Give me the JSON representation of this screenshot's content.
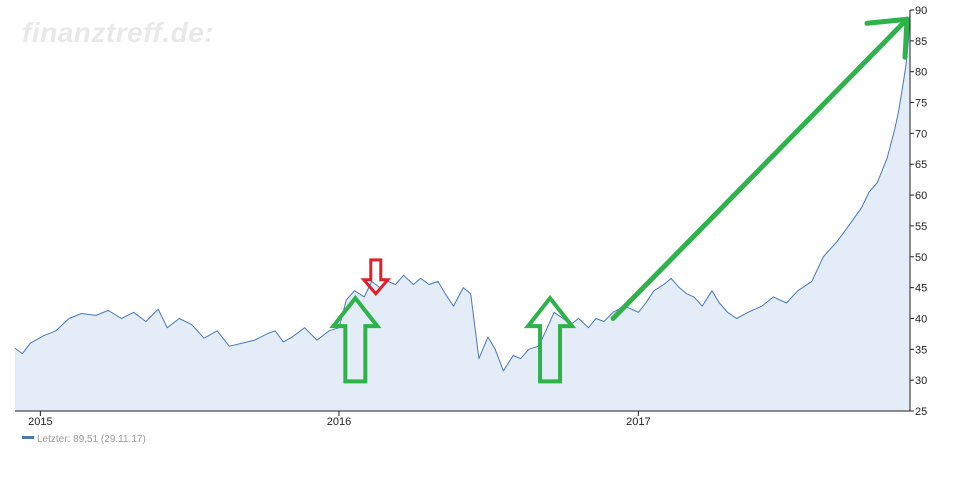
{
  "watermark": "finanztreff.de:",
  "chart_data": {
    "type": "area",
    "title": "",
    "xlabel": "",
    "ylabel": "",
    "x_range": [
      "2014-12-01",
      "2017-11-29"
    ],
    "ylim": [
      25,
      90
    ],
    "y_ticks": [
      25,
      30,
      35,
      40,
      45,
      50,
      55,
      60,
      65,
      70,
      75,
      80,
      85,
      90
    ],
    "x_ticks": [
      {
        "date": "2015-01-01",
        "label": "2015"
      },
      {
        "date": "2016-01-01",
        "label": "2016"
      },
      {
        "date": "2017-01-01",
        "label": "2017"
      }
    ],
    "y_axis_position": "right",
    "grid": false,
    "series": [
      {
        "name": "Letzter",
        "color": "#4a79b5",
        "fill_color": "#e3ecf7",
        "points": [
          [
            "2014-12-01",
            35.2
          ],
          [
            "2014-12-10",
            34.3
          ],
          [
            "2014-12-20",
            36.0
          ],
          [
            "2015-01-05",
            37.2
          ],
          [
            "2015-01-20",
            38.0
          ],
          [
            "2015-02-05",
            40.0
          ],
          [
            "2015-02-20",
            40.8
          ],
          [
            "2015-03-10",
            40.5
          ],
          [
            "2015-03-25",
            41.3
          ],
          [
            "2015-04-10",
            40.0
          ],
          [
            "2015-04-25",
            41.0
          ],
          [
            "2015-05-10",
            39.5
          ],
          [
            "2015-05-25",
            41.5
          ],
          [
            "2015-06-05",
            38.5
          ],
          [
            "2015-06-20",
            40.0
          ],
          [
            "2015-07-05",
            39.0
          ],
          [
            "2015-07-20",
            36.8
          ],
          [
            "2015-08-05",
            38.0
          ],
          [
            "2015-08-20",
            35.5
          ],
          [
            "2015-09-05",
            36.0
          ],
          [
            "2015-09-20",
            36.5
          ],
          [
            "2015-10-05",
            37.5
          ],
          [
            "2015-10-15",
            38.0
          ],
          [
            "2015-10-25",
            36.2
          ],
          [
            "2015-11-05",
            37.0
          ],
          [
            "2015-11-20",
            38.5
          ],
          [
            "2015-12-05",
            36.5
          ],
          [
            "2015-12-20",
            38.0
          ],
          [
            "2016-01-01",
            38.5
          ],
          [
            "2016-01-10",
            43.0
          ],
          [
            "2016-01-20",
            44.5
          ],
          [
            "2016-02-01",
            43.5
          ],
          [
            "2016-02-10",
            46.0
          ],
          [
            "2016-02-20",
            45.0
          ],
          [
            "2016-03-01",
            46.0
          ],
          [
            "2016-03-10",
            45.5
          ],
          [
            "2016-03-20",
            47.0
          ],
          [
            "2016-04-01",
            45.5
          ],
          [
            "2016-04-10",
            46.5
          ],
          [
            "2016-04-20",
            45.5
          ],
          [
            "2016-05-01",
            46.0
          ],
          [
            "2016-05-10",
            44.0
          ],
          [
            "2016-05-20",
            42.0
          ],
          [
            "2016-06-01",
            45.0
          ],
          [
            "2016-06-10",
            44.0
          ],
          [
            "2016-06-20",
            33.5
          ],
          [
            "2016-07-01",
            37.0
          ],
          [
            "2016-07-10",
            35.0
          ],
          [
            "2016-07-20",
            31.5
          ],
          [
            "2016-08-01",
            34.0
          ],
          [
            "2016-08-10",
            33.5
          ],
          [
            "2016-08-20",
            35.0
          ],
          [
            "2016-09-01",
            35.5
          ],
          [
            "2016-09-10",
            38.0
          ],
          [
            "2016-09-20",
            41.0
          ],
          [
            "2016-10-01",
            40.0
          ],
          [
            "2016-10-10",
            39.0
          ],
          [
            "2016-10-20",
            40.0
          ],
          [
            "2016-11-01",
            38.5
          ],
          [
            "2016-11-10",
            40.0
          ],
          [
            "2016-11-20",
            39.5
          ],
          [
            "2016-12-01",
            41.0
          ],
          [
            "2016-12-15",
            42.0
          ],
          [
            "2017-01-01",
            41.0
          ],
          [
            "2017-01-10",
            42.5
          ],
          [
            "2017-01-20",
            44.5
          ],
          [
            "2017-02-01",
            45.5
          ],
          [
            "2017-02-10",
            46.5
          ],
          [
            "2017-02-20",
            45.0
          ],
          [
            "2017-03-01",
            44.0
          ],
          [
            "2017-03-10",
            43.5
          ],
          [
            "2017-03-20",
            42.0
          ],
          [
            "2017-04-01",
            44.5
          ],
          [
            "2017-04-10",
            42.5
          ],
          [
            "2017-04-20",
            41.0
          ],
          [
            "2017-05-01",
            40.0
          ],
          [
            "2017-05-15",
            41.0
          ],
          [
            "2017-06-01",
            42.0
          ],
          [
            "2017-06-15",
            43.5
          ],
          [
            "2017-07-01",
            42.5
          ],
          [
            "2017-07-15",
            44.5
          ],
          [
            "2017-08-01",
            46.0
          ],
          [
            "2017-08-15",
            50.0
          ],
          [
            "2017-09-01",
            52.5
          ],
          [
            "2017-09-15",
            55.0
          ],
          [
            "2017-10-01",
            58.0
          ],
          [
            "2017-10-10",
            60.5
          ],
          [
            "2017-10-20",
            62.0
          ],
          [
            "2017-11-01",
            66.0
          ],
          [
            "2017-11-10",
            70.5
          ],
          [
            "2017-11-15",
            73.5
          ],
          [
            "2017-11-20",
            77.5
          ],
          [
            "2017-11-24",
            81.0
          ],
          [
            "2017-11-27",
            85.0
          ],
          [
            "2017-11-29",
            89.51
          ]
        ]
      }
    ],
    "legend": {
      "position": "bottom-left",
      "text": "Letzter: 89,51 (29.11.17)"
    },
    "annotations": [
      {
        "type": "arrow-up",
        "color": "#2db34a",
        "at_date": "2016-01-21",
        "label": ""
      },
      {
        "type": "arrow-down",
        "color": "#e0202a",
        "at_date": "2016-02-15",
        "label": ""
      },
      {
        "type": "arrow-up",
        "color": "#2db34a",
        "at_date": "2016-09-15",
        "label": ""
      },
      {
        "type": "trend-arrow",
        "color": "#2db34a",
        "from_date": "2016-12-01",
        "to_date": "2017-11-29",
        "label": ""
      }
    ]
  }
}
